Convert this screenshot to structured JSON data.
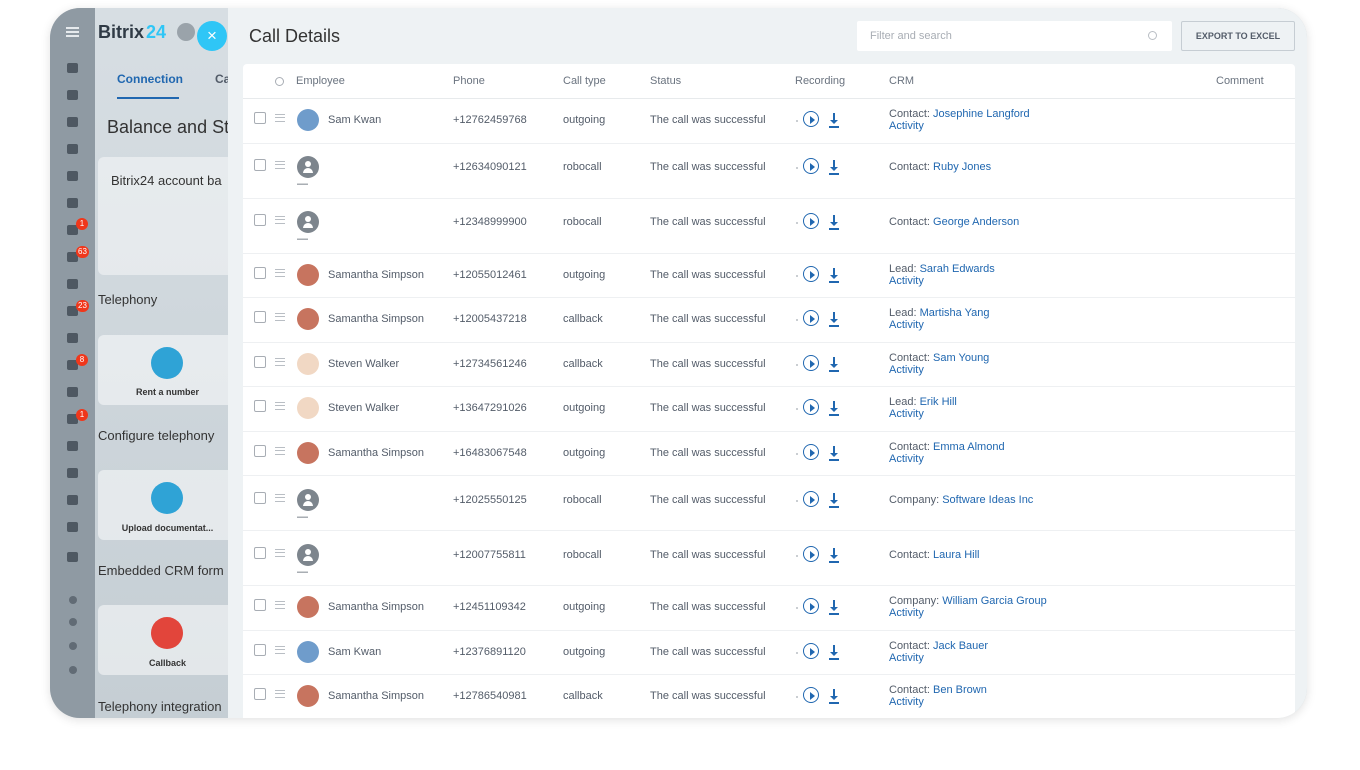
{
  "sidebar": {
    "logo": "Bitrix",
    "logo_num": "24",
    "close": "×",
    "badges": [
      "1",
      "63",
      "23",
      "8",
      "1"
    ]
  },
  "background": {
    "tabs": [
      "Connection",
      "Ca"
    ],
    "heading": "Balance and St",
    "account": "Bitrix24 account ba",
    "sections": [
      "Telephony",
      "Configure telephony",
      "Embedded CRM form",
      "Telephony integration"
    ],
    "tiles": [
      "Rent a number",
      "Upload documentat...",
      "Callback"
    ]
  },
  "panel": {
    "title": "Call Details",
    "search_placeholder": "Filter and search",
    "export": "EXPORT TO EXCEL",
    "columns": [
      "Employee",
      "Phone",
      "Call type",
      "Status",
      "Recording",
      "CRM",
      "Comment"
    ],
    "rows": [
      {
        "employee": "Sam Kwan",
        "phone": "+12762459768",
        "call_type": "outgoing",
        "status": "The call was successful",
        "crm": {
          "label": "Contact:",
          "name": "Josephine Langford",
          "activity": "Activity"
        }
      },
      {
        "employee": "—",
        "phone": "+12634090121",
        "call_type": "robocall",
        "status": "The call was successful",
        "crm": {
          "label": "Contact:",
          "name": "Ruby Jones"
        }
      },
      {
        "employee": "—",
        "phone": "+12348999900",
        "call_type": "robocall",
        "status": "The call was successful",
        "crm": {
          "label": "Contact:",
          "name": "George Anderson"
        }
      },
      {
        "employee": "Samantha Simpson",
        "phone": "+12055012461",
        "call_type": "outgoing",
        "status": "The call was successful",
        "crm": {
          "label": "Lead:",
          "name": "Sarah Edwards",
          "activity": "Activity"
        }
      },
      {
        "employee": "Samantha Simpson",
        "phone": "+12005437218",
        "call_type": "callback",
        "status": "The call was successful",
        "crm": {
          "label": "Lead:",
          "name": "Martisha Yang",
          "activity": "Activity"
        }
      },
      {
        "employee": "Steven Walker",
        "phone": "+12734561246",
        "call_type": "callback",
        "status": "The call was successful",
        "crm": {
          "label": "Contact:",
          "name": "Sam Young",
          "activity": "Activity"
        }
      },
      {
        "employee": "Steven Walker",
        "phone": "+13647291026",
        "call_type": "outgoing",
        "status": "The call was successful",
        "crm": {
          "label": "Lead:",
          "name": "Erik Hill",
          "activity": "Activity"
        }
      },
      {
        "employee": "Samantha Simpson",
        "phone": "+16483067548",
        "call_type": "outgoing",
        "status": "The call was successful",
        "crm": {
          "label": "Contact:",
          "name": "Emma Almond",
          "activity": "Activity"
        }
      },
      {
        "employee": "—",
        "phone": "+12025550125",
        "call_type": "robocall",
        "status": "The call was successful",
        "crm": {
          "label": "Company:",
          "name": "Software Ideas Inc"
        }
      },
      {
        "employee": "—",
        "phone": "+12007755811",
        "call_type": "robocall",
        "status": "The call was successful",
        "crm": {
          "label": "Contact:",
          "name": "Laura Hill"
        }
      },
      {
        "employee": "Samantha Simpson",
        "phone": "+12451109342",
        "call_type": "outgoing",
        "status": "The call was successful",
        "crm": {
          "label": "Company:",
          "name": "William Garcia Group",
          "activity": "Activity"
        }
      },
      {
        "employee": "Sam Kwan",
        "phone": "+12376891120",
        "call_type": "outgoing",
        "status": "The call was successful",
        "crm": {
          "label": "Contact:",
          "name": "Jack Bauer",
          "activity": "Activity"
        }
      },
      {
        "employee": "Samantha Simpson",
        "phone": "+12786540981",
        "call_type": "callback",
        "status": "The call was successful",
        "crm": {
          "label": "Contact:",
          "name": "Ben Brown",
          "activity": "Activity"
        }
      }
    ]
  }
}
